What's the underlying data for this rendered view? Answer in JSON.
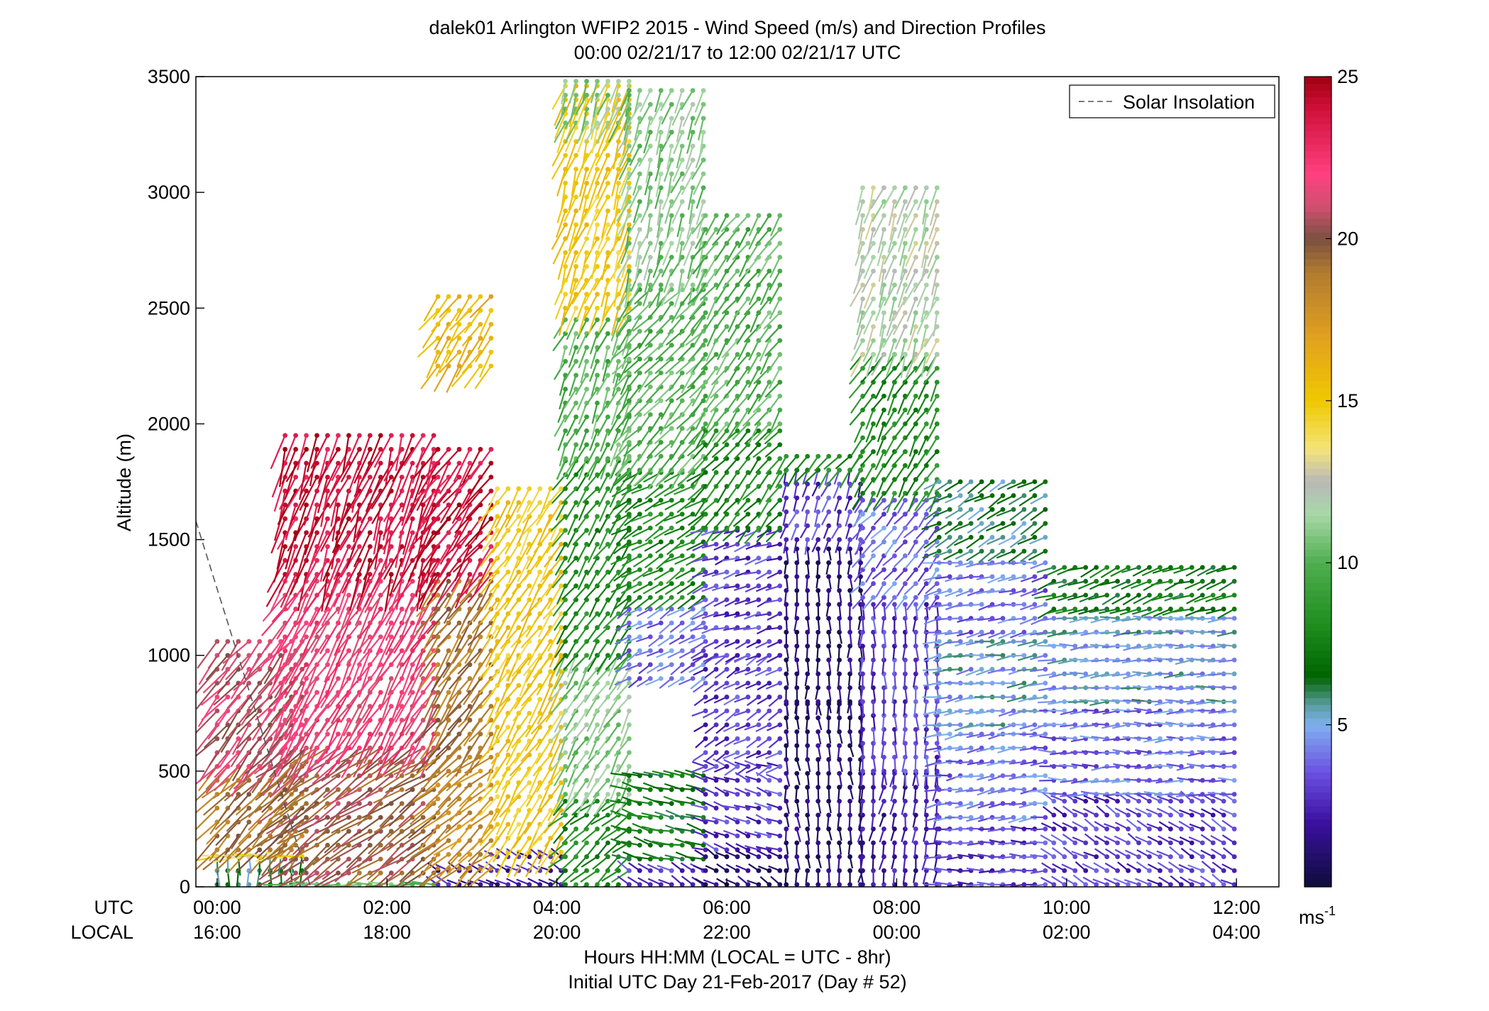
{
  "chart_data": {
    "type": "scatter",
    "title": "dalek01 Arlington WFIP2 2015 - Wind Speed (m/s) and Direction Profiles",
    "subtitle": "00:00 02/21/17 to 12:00 02/21/17  UTC",
    "ylabel": "Altitude (m)",
    "xlabel": "Hours HH:MM  (LOCAL = UTC - 8hr)",
    "footnote": "Initial UTC Day 21-Feb-2017 (Day # 52)",
    "row_label_utc": "UTC",
    "row_label_local": "LOCAL",
    "xlim": [
      -0.25,
      12.5
    ],
    "ylim": [
      0,
      3500
    ],
    "yticks": [
      0,
      500,
      1000,
      1500,
      2000,
      2500,
      3000,
      3500
    ],
    "yticklabels": [
      "0",
      "500",
      "1000",
      "1500",
      "2000",
      "2500",
      "3000",
      "3500"
    ],
    "xticks": [
      0,
      2,
      4,
      6,
      8,
      10,
      12
    ],
    "xticklabels_utc": [
      "00:00",
      "02:00",
      "04:00",
      "06:00",
      "08:00",
      "10:00",
      "12:00"
    ],
    "xticklabels_local": [
      "16:00",
      "18:00",
      "20:00",
      "22:00",
      "00:00",
      "02:00",
      "04:00"
    ],
    "legend": {
      "entries": [
        "Solar Insolation"
      ],
      "position": "top-right"
    },
    "solar_insolation": {
      "x": [
        -0.25,
        1.1
      ],
      "y": [
        1580,
        0
      ],
      "style": "dashed",
      "color": "#555555"
    },
    "colorbar": {
      "min": 0,
      "max": 25,
      "ticks": [
        5,
        10,
        15,
        20,
        25
      ],
      "ticklabels": [
        "5",
        "10",
        "15",
        "20",
        "25"
      ],
      "unit_base": "ms",
      "unit_exp": "-1",
      "stops": [
        [
          0,
          "#0d0d3a"
        ],
        [
          2,
          "#3b10a0"
        ],
        [
          3.5,
          "#6a4fe0"
        ],
        [
          5,
          "#7fb0f0"
        ],
        [
          5.6,
          "#5a9ea0"
        ],
        [
          6.5,
          "#006400"
        ],
        [
          8,
          "#1c8c1c"
        ],
        [
          10,
          "#4fae4f"
        ],
        [
          11.5,
          "#a8d8a8"
        ],
        [
          12.5,
          "#b8b8b8"
        ],
        [
          13.5,
          "#f4e47a"
        ],
        [
          15,
          "#f0c800"
        ],
        [
          17,
          "#e0a020"
        ],
        [
          19,
          "#b07a30"
        ],
        [
          20,
          "#7a5040"
        ],
        [
          21,
          "#d05070"
        ],
        [
          22,
          "#ff4080"
        ],
        [
          24,
          "#d0103a"
        ],
        [
          25,
          "#a00010"
        ]
      ]
    },
    "barb_rule": "marker at (time, altitude); shaft points toward wind-from direction; color = wind speed (m/s)",
    "profiles": [
      {
        "t0": 0.0,
        "t1": 1.1,
        "layers": [
          [
            0,
            130,
            180,
            6
          ],
          [
            130,
            160,
            270,
            14
          ],
          [
            160,
            520,
            225,
            19
          ],
          [
            520,
            1100,
            220,
            21
          ]
        ]
      },
      {
        "t0": 0.8,
        "t1": 2.55,
        "layers": [
          [
            0,
            60,
            270,
            10
          ],
          [
            60,
            600,
            235,
            20
          ],
          [
            600,
            1350,
            210,
            22
          ],
          [
            1350,
            1980,
            200,
            24
          ]
        ]
      },
      {
        "t0": 2.6,
        "t1": 3.25,
        "layers": [
          [
            0,
            80,
            300,
            2
          ],
          [
            80,
            600,
            230,
            18
          ],
          [
            600,
            1350,
            215,
            19
          ],
          [
            1350,
            1900,
            215,
            24
          ],
          [
            2250,
            2550,
            215,
            16
          ]
        ]
      },
      {
        "t0": 3.3,
        "t1": 4.15,
        "layers": [
          [
            0,
            150,
            300,
            2
          ],
          [
            150,
            1000,
            212,
            15
          ],
          [
            1000,
            1750,
            212,
            15
          ]
        ]
      },
      {
        "t0": 4.1,
        "t1": 4.85,
        "layers": [
          [
            0,
            400,
            230,
            8
          ],
          [
            400,
            1000,
            210,
            11
          ],
          [
            1000,
            1850,
            215,
            8
          ],
          [
            1850,
            2500,
            205,
            10
          ],
          [
            2500,
            3500,
            200,
            15
          ],
          [
            3300,
            3500,
            200,
            11
          ]
        ]
      },
      {
        "t0": 4.85,
        "t1": 5.75,
        "layers": [
          [
            0,
            120,
            300,
            3
          ],
          [
            120,
            520,
            285,
            7
          ],
          [
            900,
            1250,
            240,
            4
          ],
          [
            1250,
            1800,
            240,
            8
          ],
          [
            1800,
            2600,
            220,
            10
          ],
          [
            2600,
            3450,
            200,
            11
          ]
        ]
      },
      {
        "t0": 5.75,
        "t1": 6.7,
        "layers": [
          [
            0,
            160,
            300,
            1
          ],
          [
            160,
            520,
            290,
            3
          ],
          [
            520,
            1000,
            240,
            3
          ],
          [
            1000,
            1550,
            250,
            3
          ],
          [
            1550,
            2000,
            220,
            8
          ],
          [
            2000,
            2900,
            215,
            10
          ]
        ]
      },
      {
        "t0": 6.7,
        "t1": 7.6,
        "layers": [
          [
            0,
            800,
            175,
            1
          ],
          [
            800,
            1500,
            180,
            1
          ],
          [
            1500,
            1800,
            200,
            3
          ],
          [
            1800,
            1900,
            220,
            8
          ]
        ]
      },
      {
        "t0": 7.6,
        "t1": 8.5,
        "layers": [
          [
            0,
            500,
            190,
            2
          ],
          [
            500,
            1250,
            180,
            3
          ],
          [
            1250,
            1700,
            220,
            4
          ],
          [
            1700,
            2300,
            210,
            8
          ],
          [
            2300,
            3050,
            200,
            12
          ]
        ]
      },
      {
        "t0": 8.5,
        "t1": 9.85,
        "layers": [
          [
            0,
            300,
            270,
            3
          ],
          [
            300,
            700,
            262,
            4
          ],
          [
            700,
            1100,
            260,
            5
          ],
          [
            1100,
            1450,
            258,
            4
          ],
          [
            1450,
            1750,
            240,
            6
          ]
        ]
      },
      {
        "t0": 9.85,
        "t1": 12.0,
        "layers": [
          [
            0,
            400,
            300,
            3
          ],
          [
            400,
            800,
            268,
            4
          ],
          [
            800,
            1200,
            266,
            5
          ],
          [
            1200,
            1430,
            250,
            7
          ]
        ]
      }
    ]
  }
}
